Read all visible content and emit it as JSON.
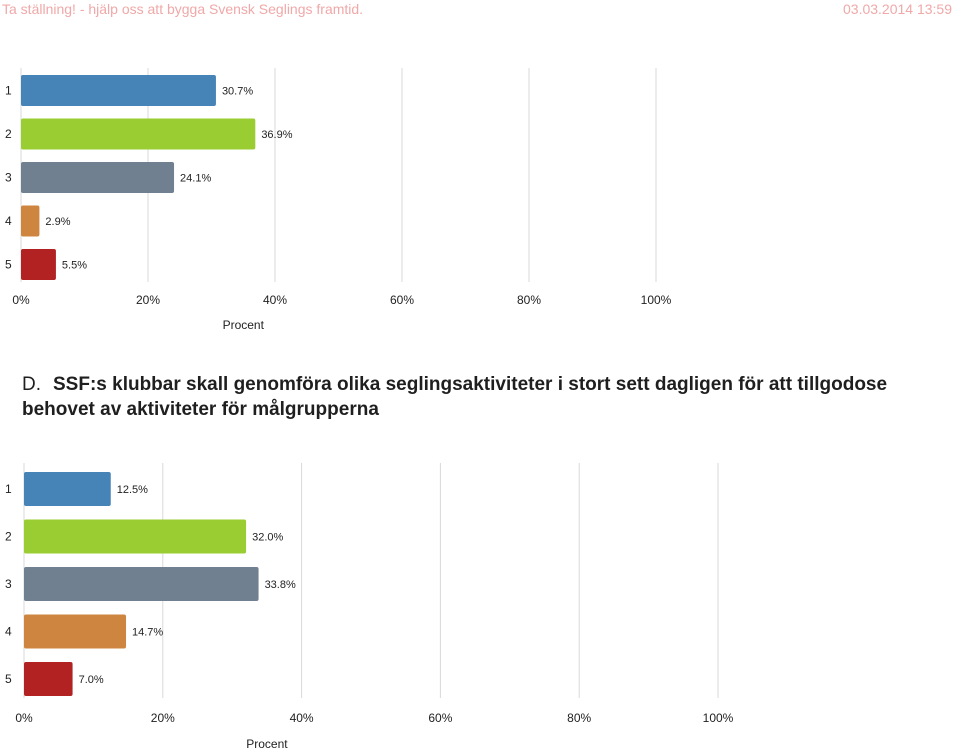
{
  "header": {
    "title": "Ta ställning! - hjälp oss att bygga Svensk Seglings framtid.",
    "datetime": "03.03.2014 13:59"
  },
  "question_d": {
    "prefix": "D.",
    "text": "SSF:s klubbar skall genomföra olika seglingsaktiviteter i stort sett dagligen för att tillgodose behovet av aktiviteter för målgrupperna"
  },
  "colors": {
    "bar_1": "#4683b7",
    "bar_2": "#9acd32",
    "bar_3": "#708090",
    "bar_4": "#cd853f",
    "bar_5": "#b22222",
    "grid": "#d9d9d9"
  },
  "chart_data": [
    {
      "type": "bar",
      "orientation": "horizontal",
      "categories": [
        "1",
        "2",
        "3",
        "4",
        "5"
      ],
      "values": [
        30.7,
        36.9,
        24.1,
        2.9,
        5.5
      ],
      "data_labels": [
        "30.7%",
        "36.9%",
        "24.1%",
        "2.9%",
        "5.5%"
      ],
      "xlabel": "Procent",
      "xlim": [
        0,
        100
      ],
      "x_ticks": [
        "0%",
        "20%",
        "40%",
        "60%",
        "80%",
        "100%"
      ],
      "grid": true
    },
    {
      "type": "bar",
      "orientation": "horizontal",
      "categories": [
        "1",
        "2",
        "3",
        "4",
        "5"
      ],
      "values": [
        12.5,
        32.0,
        33.8,
        14.7,
        7.0
      ],
      "data_labels": [
        "12.5%",
        "32.0%",
        "33.8%",
        "14.7%",
        "7.0%"
      ],
      "xlabel": "Procent",
      "xlim": [
        0,
        100
      ],
      "x_ticks": [
        "0%",
        "20%",
        "40%",
        "60%",
        "80%",
        "100%"
      ],
      "grid": true
    }
  ]
}
